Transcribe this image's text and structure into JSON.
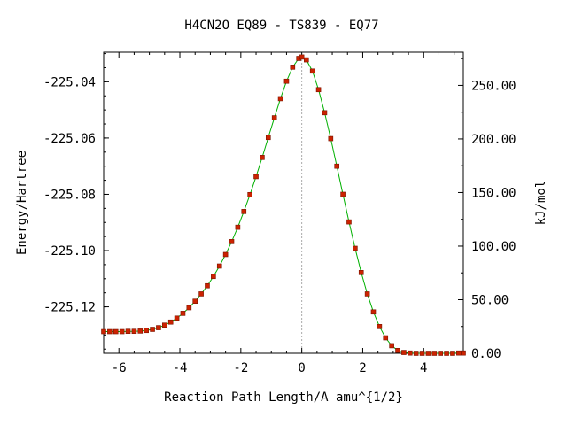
{
  "chart_data": {
    "type": "line",
    "title": "H4CN2O   EQ89 - TS839 - EQ77",
    "xlabel": "Reaction Path Length/A amu^{1/2}",
    "ylabel": "Energy/Hartree",
    "y2label": "kJ/mol",
    "xlim": [
      -6.5,
      5.3
    ],
    "ylim": [
      -225.1365,
      -225.0295
    ],
    "x_ticks": [
      -6,
      -4,
      -2,
      0,
      2,
      4
    ],
    "x_tick_labels": [
      "-6",
      "-4",
      "-2",
      "0",
      "2",
      "4"
    ],
    "y_ticks": [
      -225.04,
      -225.06,
      -225.08,
      -225.1,
      -225.12
    ],
    "y_tick_labels": [
      "-225.04",
      "-225.06",
      "-225.08",
      "-225.10",
      "-225.12"
    ],
    "y2_ticks": [
      0,
      50,
      100,
      150,
      200,
      250
    ],
    "y2_tick_labels": [
      "0.00",
      "50.00",
      "100.00",
      "150.00",
      "200.00",
      "250.00"
    ],
    "y2_reference_energy": -225.1365,
    "hartree_to_kjmol": 2625.5,
    "ts_marker_x": 0,
    "grid": false,
    "line_color": "#00b000",
    "marker_color": "#cc2200",
    "marker_edge_color": "#7a1400",
    "ts_line_color": "#aaaaaa",
    "series": [
      {
        "x": [
          -6.5,
          -6.3,
          -6.1,
          -5.9,
          -5.7,
          -5.5,
          -5.3,
          -5.1,
          -4.9,
          -4.7,
          -4.5,
          -4.3,
          -4.1,
          -3.9,
          -3.7,
          -3.5,
          -3.3,
          -3.1,
          -2.9,
          -2.7,
          -2.5,
          -2.3,
          -2.1,
          -1.9,
          -1.7,
          -1.5,
          -1.3,
          -1.1,
          -0.9,
          -0.7,
          -0.5,
          -0.3,
          -0.1,
          0.0,
          0.15,
          0.35,
          0.55,
          0.75,
          0.95,
          1.15,
          1.35,
          1.55,
          1.75,
          1.95,
          2.15,
          2.35,
          2.55,
          2.75,
          2.95,
          3.15,
          3.35,
          3.55,
          3.75,
          3.95,
          4.15,
          4.35,
          4.55,
          4.75,
          4.95,
          5.15,
          5.3
        ],
        "y": [
          -225.1288,
          -225.1288,
          -225.1288,
          -225.1288,
          -225.1287,
          -225.1287,
          -225.1286,
          -225.1284,
          -225.128,
          -225.1274,
          -225.1265,
          -225.1254,
          -225.124,
          -225.1223,
          -225.1203,
          -225.118,
          -225.1154,
          -225.1125,
          -225.1092,
          -225.1055,
          -225.1014,
          -225.0968,
          -225.0917,
          -225.0861,
          -225.0801,
          -225.0737,
          -225.0669,
          -225.0598,
          -225.0528,
          -225.046,
          -225.0398,
          -225.0348,
          -225.0317,
          -225.0312,
          -225.0322,
          -225.0362,
          -225.0428,
          -225.051,
          -225.0602,
          -225.07,
          -225.08,
          -225.0898,
          -225.0992,
          -225.1078,
          -225.1154,
          -225.1218,
          -225.127,
          -225.131,
          -225.1338,
          -225.1355,
          -225.1362,
          -225.1364,
          -225.1365,
          -225.1365,
          -225.1365,
          -225.1365,
          -225.1365,
          -225.1365,
          -225.1365,
          -225.1364,
          -225.1364
        ]
      }
    ]
  }
}
